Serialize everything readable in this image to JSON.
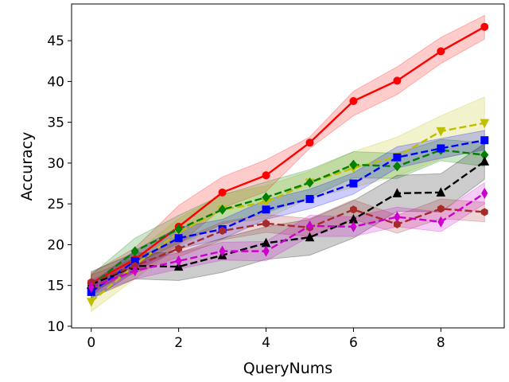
{
  "chart_data": {
    "type": "line",
    "title": "",
    "xlabel": "QueryNums",
    "ylabel": "Accuracy",
    "xlim": [
      -0.45,
      9.45
    ],
    "ylim": [
      9.8,
      49.5
    ],
    "xticks": [
      0,
      2,
      4,
      6,
      8
    ],
    "yticks": [
      10,
      15,
      20,
      25,
      30,
      35,
      40,
      45
    ],
    "x": [
      0,
      1,
      2,
      3,
      4,
      5,
      6,
      7,
      8,
      9
    ],
    "series": [
      {
        "name": "red",
        "color": "#ff0000",
        "marker": "circle",
        "dashed": false,
        "values": [
          15.3,
          18.2,
          22.2,
          26.4,
          28.5,
          32.5,
          37.6,
          40.1,
          43.7,
          46.7
        ],
        "lower": [
          14.2,
          16.8,
          20.0,
          24.5,
          26.5,
          31.8,
          35.8,
          38.4,
          42.2,
          45.2
        ],
        "upper": [
          16.5,
          19.6,
          24.8,
          28.3,
          30.4,
          33.2,
          38.8,
          41.8,
          45.4,
          48.1
        ]
      },
      {
        "name": "yellow",
        "color": "#bfbf00",
        "marker": "triangle-down",
        "dashed": true,
        "values": [
          13.0,
          17.5,
          21.5,
          24.3,
          25.2,
          27.6,
          29.4,
          30.8,
          33.9,
          34.9
        ],
        "lower": [
          11.8,
          15.8,
          19.8,
          22.5,
          23.2,
          25.7,
          27.0,
          28.4,
          30.5,
          31.8
        ],
        "upper": [
          14.4,
          19.0,
          23.2,
          26.2,
          27.2,
          29.0,
          31.4,
          33.2,
          35.8,
          38.1
        ]
      },
      {
        "name": "green",
        "color": "#008000",
        "marker": "diamond",
        "dashed": true,
        "values": [
          15.0,
          19.2,
          21.9,
          24.3,
          25.8,
          27.6,
          29.8,
          29.6,
          31.6,
          31.0
        ],
        "lower": [
          13.8,
          17.6,
          20.2,
          22.5,
          23.9,
          25.8,
          28.2,
          28.1,
          30.3,
          29.6
        ],
        "upper": [
          16.3,
          20.8,
          23.6,
          26.1,
          27.7,
          29.2,
          31.4,
          31.2,
          32.9,
          32.5
        ]
      },
      {
        "name": "blue",
        "color": "#0000ff",
        "marker": "square",
        "dashed": true,
        "values": [
          14.2,
          18.0,
          20.8,
          21.9,
          24.3,
          25.6,
          27.5,
          30.7,
          31.8,
          32.8
        ],
        "lower": [
          13.2,
          16.7,
          19.5,
          20.7,
          23.1,
          24.4,
          26.2,
          29.4,
          30.6,
          31.6
        ],
        "upper": [
          15.2,
          19.3,
          22.1,
          23.1,
          25.5,
          26.8,
          28.8,
          32.0,
          33.0,
          34.0
        ]
      },
      {
        "name": "black",
        "color": "#000000",
        "marker": "triangle-up",
        "dashed": true,
        "values": [
          15.1,
          17.4,
          17.3,
          18.7,
          20.2,
          20.9,
          23.1,
          26.3,
          26.4,
          30.2
        ],
        "lower": [
          13.5,
          15.8,
          15.6,
          16.6,
          18.2,
          18.7,
          20.8,
          24.1,
          24.0,
          28.0
        ],
        "upper": [
          16.7,
          19.0,
          19.0,
          20.8,
          22.2,
          23.1,
          25.4,
          28.5,
          28.7,
          32.4
        ]
      },
      {
        "name": "brown",
        "color": "#a52a2a",
        "marker": "hexagon",
        "dashed": true,
        "values": [
          15.4,
          17.4,
          19.5,
          21.7,
          22.6,
          22.1,
          24.3,
          22.5,
          24.4,
          24.0
        ],
        "lower": [
          14.5,
          16.5,
          18.5,
          20.6,
          21.5,
          21.0,
          23.1,
          21.4,
          23.2,
          22.8
        ],
        "upper": [
          16.3,
          18.3,
          20.5,
          22.8,
          23.7,
          23.2,
          25.5,
          23.6,
          25.6,
          25.2
        ]
      },
      {
        "name": "magenta",
        "color": "#cc00cc",
        "marker": "thin-diamond",
        "dashed": true,
        "values": [
          14.8,
          16.8,
          18.0,
          19.2,
          19.2,
          22.3,
          22.2,
          23.4,
          22.8,
          26.3
        ],
        "lower": [
          13.9,
          15.8,
          17.0,
          18.1,
          18.0,
          21.0,
          21.0,
          22.2,
          21.6,
          25.0
        ],
        "upper": [
          15.7,
          17.8,
          19.0,
          20.3,
          20.4,
          23.6,
          23.4,
          24.6,
          24.0,
          27.6
        ]
      }
    ]
  }
}
